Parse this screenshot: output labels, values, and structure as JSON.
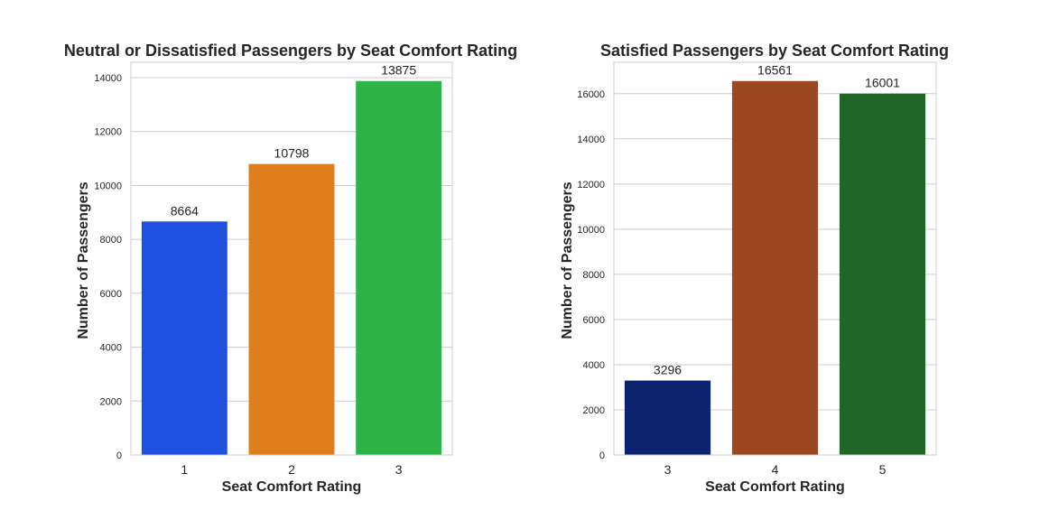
{
  "chart_data": [
    {
      "type": "bar",
      "title": "Neutral or Dissatisfied Passengers by Seat Comfort Rating",
      "xlabel": "Seat Comfort Rating",
      "ylabel": "Number of Passengers",
      "categories": [
        "1",
        "2",
        "3"
      ],
      "values": [
        8664,
        10798,
        13875
      ],
      "colors": [
        "#2050e0",
        "#e07e1e",
        "#2eb346"
      ],
      "ylim": [
        0,
        14570
      ],
      "yticks": [
        0,
        2000,
        4000,
        6000,
        8000,
        10000,
        12000,
        14000
      ],
      "grid": true,
      "legend": "none"
    },
    {
      "type": "bar",
      "title": "Satisfied Passengers by Seat Comfort Rating",
      "xlabel": "Seat Comfort Rating",
      "ylabel": "Number of Passengers",
      "categories": [
        "3",
        "4",
        "5"
      ],
      "values": [
        3296,
        16561,
        16001
      ],
      "colors": [
        "#0d236f",
        "#9b4720",
        "#1f6628"
      ],
      "ylim": [
        0,
        17390
      ],
      "yticks": [
        0,
        2000,
        4000,
        6000,
        8000,
        10000,
        12000,
        14000,
        16000
      ],
      "grid": true,
      "legend": "none"
    }
  ]
}
